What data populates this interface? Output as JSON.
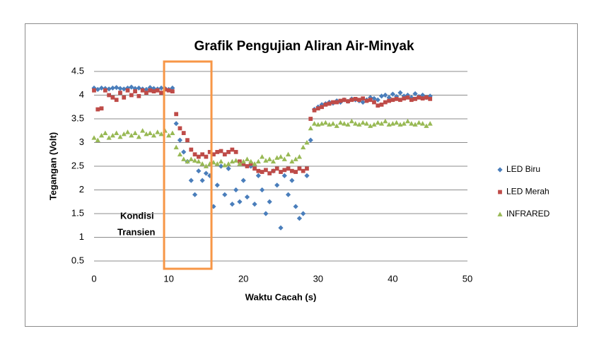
{
  "chart_data": {
    "type": "scatter",
    "title": "Grafik Pengujian Aliran Air-Minyak",
    "x_label": "Waktu Cacah (s)",
    "y_label": "Tegangan (Volt)",
    "annotation": [
      "Kondisi",
      "Transien"
    ],
    "xlim": [
      0,
      50
    ],
    "xticks": [
      0,
      10,
      20,
      30,
      40,
      50
    ],
    "ylim": [
      0.5,
      4.5
    ],
    "yticks": [
      0.5,
      1,
      1.5,
      2,
      2.5,
      3,
      3.5,
      4,
      4.5
    ],
    "grid": true,
    "legend": "right",
    "x": [
      0,
      0.5,
      1,
      1.5,
      2,
      2.5,
      3,
      3.5,
      4,
      4.5,
      5,
      5.5,
      6,
      6.5,
      7,
      7.5,
      8,
      8.5,
      9,
      9.5,
      10,
      10.5,
      11,
      11.5,
      12,
      12.5,
      13,
      13.5,
      14,
      14.5,
      15,
      15.5,
      16,
      16.5,
      17,
      17.5,
      18,
      18.5,
      19,
      19.5,
      20,
      20.5,
      21,
      21.5,
      22,
      22.5,
      23,
      23.5,
      24,
      24.5,
      25,
      25.5,
      26,
      26.5,
      27,
      27.5,
      28,
      28.5,
      29,
      29.5,
      30,
      30.5,
      31,
      31.5,
      32,
      32.5,
      33,
      33.5,
      34,
      34.5,
      35,
      35.5,
      36,
      36.5,
      37,
      37.5,
      38,
      38.5,
      39,
      39.5,
      40,
      40.5,
      41,
      41.5,
      42,
      42.5,
      43,
      43.5,
      44,
      44.5,
      45
    ],
    "series": [
      {
        "name": "LED Biru",
        "color": "#4a7ebb",
        "marker": "diamond",
        "values": [
          4.15,
          4.12,
          4.15,
          4.14,
          4.13,
          4.15,
          4.16,
          4.14,
          4.13,
          4.15,
          4.17,
          4.14,
          4.15,
          4.13,
          4.12,
          4.16,
          4.14,
          4.13,
          4.15,
          4.14,
          4.12,
          4.15,
          3.4,
          3.05,
          2.8,
          2.6,
          2.2,
          1.9,
          2.4,
          2.2,
          2.35,
          2.3,
          1.65,
          2.1,
          2.5,
          1.9,
          2.45,
          1.7,
          2.0,
          1.75,
          2.2,
          1.85,
          2.5,
          1.7,
          2.3,
          2.0,
          1.5,
          1.75,
          2.4,
          2.1,
          1.2,
          2.3,
          1.9,
          2.2,
          1.65,
          1.4,
          1.5,
          2.3,
          3.05,
          3.7,
          3.75,
          3.8,
          3.82,
          3.85,
          3.83,
          3.88,
          3.85,
          3.9,
          3.87,
          3.92,
          3.9,
          3.88,
          3.85,
          3.9,
          3.95,
          3.93,
          3.9,
          3.98,
          4.0,
          3.95,
          4.02,
          3.97,
          4.05,
          3.98,
          4.0,
          3.95,
          4.03,
          3.97,
          4.0,
          3.95,
          3.98
        ]
      },
      {
        "name": "LED Merah",
        "color": "#be4b48",
        "marker": "square",
        "values": [
          4.1,
          3.7,
          3.72,
          4.1,
          4.0,
          3.95,
          3.9,
          4.05,
          3.95,
          4.1,
          4.0,
          4.08,
          3.98,
          4.1,
          4.05,
          4.1,
          4.08,
          4.1,
          4.05,
          4.12,
          4.1,
          4.08,
          3.6,
          3.3,
          3.2,
          3.05,
          2.85,
          2.75,
          2.7,
          2.75,
          2.7,
          2.8,
          2.75,
          2.8,
          2.82,
          2.75,
          2.8,
          2.85,
          2.8,
          2.6,
          2.55,
          2.5,
          2.55,
          2.45,
          2.4,
          2.38,
          2.42,
          2.35,
          2.4,
          2.45,
          2.38,
          2.42,
          2.45,
          2.4,
          2.38,
          2.45,
          2.4,
          2.45,
          3.5,
          3.68,
          3.72,
          3.75,
          3.8,
          3.82,
          3.85,
          3.85,
          3.88,
          3.9,
          3.87,
          3.9,
          3.92,
          3.9,
          3.93,
          3.88,
          3.9,
          3.85,
          3.78,
          3.8,
          3.85,
          3.88,
          3.9,
          3.92,
          3.9,
          3.93,
          3.95,
          3.9,
          3.92,
          3.95,
          3.93,
          3.95,
          3.92
        ]
      },
      {
        "name": "INFRARED",
        "color": "#98b954",
        "marker": "triangle",
        "values": [
          3.1,
          3.05,
          3.15,
          3.2,
          3.1,
          3.15,
          3.2,
          3.12,
          3.18,
          3.22,
          3.15,
          3.2,
          3.12,
          3.25,
          3.18,
          3.2,
          3.15,
          3.22,
          3.18,
          3.25,
          3.15,
          3.2,
          2.9,
          2.75,
          2.65,
          2.6,
          2.65,
          2.62,
          2.6,
          2.55,
          2.5,
          2.55,
          2.58,
          2.55,
          2.6,
          2.52,
          2.55,
          2.6,
          2.62,
          2.55,
          2.6,
          2.65,
          2.6,
          2.55,
          2.6,
          2.7,
          2.62,
          2.65,
          2.6,
          2.68,
          2.7,
          2.65,
          2.75,
          2.6,
          2.65,
          2.7,
          2.9,
          3.0,
          3.3,
          3.4,
          3.38,
          3.4,
          3.42,
          3.38,
          3.4,
          3.35,
          3.42,
          3.4,
          3.38,
          3.45,
          3.4,
          3.38,
          3.42,
          3.4,
          3.35,
          3.38,
          3.42,
          3.4,
          3.45,
          3.38,
          3.4,
          3.42,
          3.38,
          3.4,
          3.45,
          3.4,
          3.38,
          3.42,
          3.4,
          3.35,
          3.4
        ]
      }
    ]
  }
}
